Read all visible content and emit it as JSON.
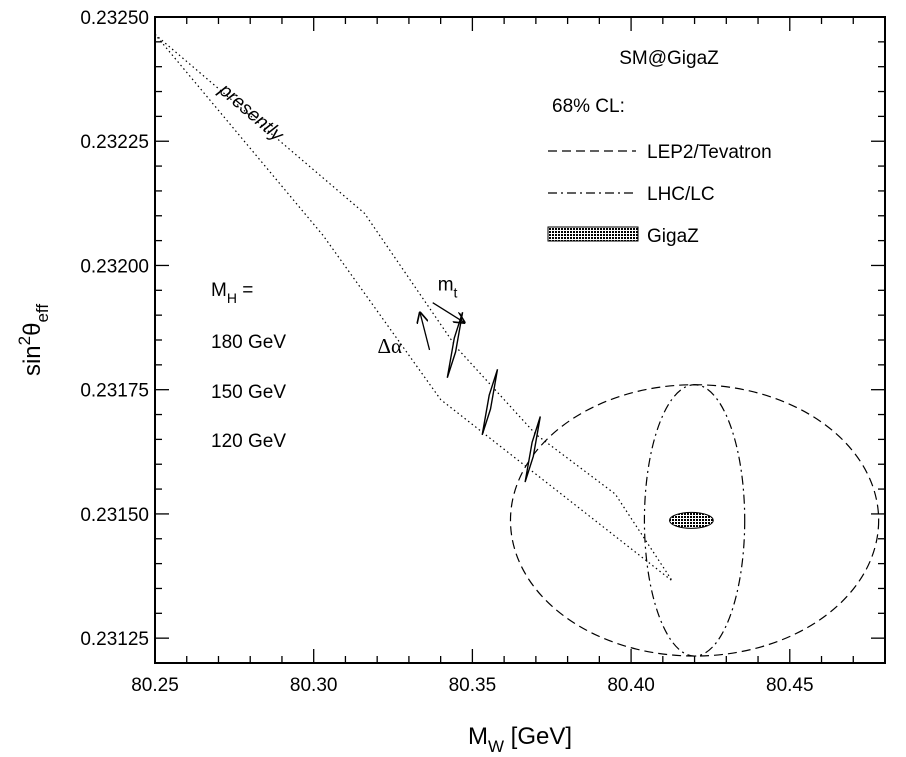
{
  "chart_data": {
    "type": "line",
    "xlabel": {
      "main": "M",
      "sub": "W",
      "rest": " [GeV]"
    },
    "ylabel": {
      "pre": "sin",
      "sup": "2",
      "main": "θ",
      "sub": "eff"
    },
    "xlim": [
      80.25,
      80.48
    ],
    "ylim": [
      0.2312,
      0.2325
    ],
    "x_ticks": [
      80.25,
      80.3,
      80.35,
      80.4,
      80.45
    ],
    "x_tick_labels": [
      "80.25",
      "80.30",
      "80.35",
      "80.40",
      "80.45"
    ],
    "y_ticks": [
      0.23125,
      0.2315,
      0.23175,
      0.232,
      0.23225,
      0.2325
    ],
    "y_tick_labels": [
      "0.23125",
      "0.23150",
      "0.23175",
      "0.23200",
      "0.23225",
      "0.23250"
    ],
    "grid": false,
    "legend": {
      "placement": "top-right",
      "title": "SM@GigaZ",
      "subtitle": "68% CL:",
      "entries": [
        {
          "label": "LEP2/Tevatron",
          "style": "dashed"
        },
        {
          "label": "LHC/LC",
          "style": "dashdot"
        },
        {
          "label": "GigaZ",
          "style": "filled-ellipse"
        }
      ]
    },
    "regions": [
      {
        "label": "LEP2/Tevatron",
        "style": "dashed",
        "center": [
          80.42,
          0.231487
        ],
        "half_width": 0.058,
        "half_height": 0.000273
      },
      {
        "label": "LHC/LC",
        "style": "dashdot",
        "center": [
          80.42,
          0.231487
        ],
        "half_width": 0.0158,
        "half_height": 0.000273
      },
      {
        "label": "GigaZ",
        "style": "filled-ellipse",
        "center": [
          80.419,
          0.231487
        ],
        "half_width": 0.0069,
        "half_height": 1.6e-05
      }
    ],
    "band": {
      "label": "presently",
      "style": "dotted",
      "outline": [
        [
          80.25,
          0.232465
        ],
        [
          80.316,
          0.232105
        ],
        [
          80.345,
          0.231835
        ],
        [
          80.37,
          0.23166
        ],
        [
          80.395,
          0.23154
        ],
        [
          80.413,
          0.231365
        ],
        [
          80.34,
          0.23173
        ],
        [
          80.303,
          0.23206
        ],
        [
          80.25,
          0.232465
        ]
      ]
    },
    "mh_label": {
      "main": "M",
      "sub": "H",
      "rest": " ="
    },
    "mh_points": [
      {
        "label": "180 GeV",
        "x": 80.3445,
        "y": 0.23184
      },
      {
        "label": "150 GeV",
        "x": 80.3555,
        "y": 0.231725
      },
      {
        "label": "120 GeV",
        "x": 80.369,
        "y": 0.23163
      }
    ],
    "parallelogram_half_width": [
      0.0013,
      2.6e-05
    ],
    "parallelogram_half_height": [
      0.0011,
      4e-05
    ],
    "arrows": [
      {
        "label": "Δα",
        "from": [
          80.3365,
          0.23183
        ],
        "to": [
          80.3335,
          0.231905
        ]
      },
      {
        "label_main": "m",
        "label_sub": "t",
        "from": [
          80.3375,
          0.231925
        ],
        "to": [
          80.3475,
          0.231885
        ]
      }
    ]
  }
}
